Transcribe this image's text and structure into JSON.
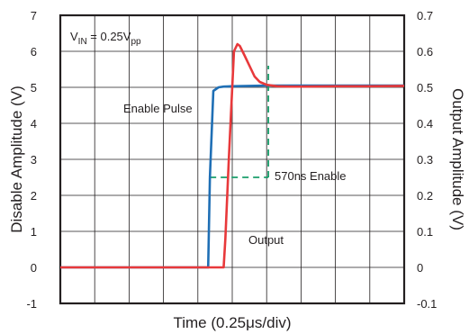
{
  "chart_data": {
    "type": "line",
    "xlabel": "Time (0.25μs/div)",
    "ylabel_left": "Disable Amplitude (V)",
    "ylabel_right": "Output Amplitude (V)",
    "x_unit": "div",
    "x_range": [
      0,
      10
    ],
    "ylim_left": [
      -1,
      7
    ],
    "ylim_right": [
      -0.1,
      0.7
    ],
    "yticks_left": [
      "-1",
      "0",
      "1",
      "2",
      "3",
      "4",
      "5",
      "6",
      "7"
    ],
    "yticks_right": [
      "-0.1",
      "0",
      "0.1",
      "0.2",
      "0.3",
      "0.4",
      "0.5",
      "0.6",
      "0.7"
    ],
    "grid": true,
    "series": [
      {
        "name": "Enable Pulse",
        "axis": "left",
        "color": "#1f6fb5",
        "x": [
          0,
          4.3,
          4.35,
          4.45,
          4.6,
          4.75,
          5.0,
          5.5,
          6.0,
          6.5,
          7.0,
          8.0,
          9.0,
          10.0
        ],
        "y": [
          0,
          0,
          2.5,
          4.9,
          5.0,
          5.02,
          5.03,
          5.04,
          5.05,
          5.05,
          5.05,
          5.05,
          5.05,
          5.05
        ]
      },
      {
        "name": "Output",
        "axis": "right",
        "color": "#e8393b",
        "x": [
          0,
          4.75,
          4.8,
          4.9,
          5.05,
          5.15,
          5.22,
          5.35,
          5.5,
          5.65,
          5.8,
          6.0,
          6.3,
          6.7,
          7.0,
          8.0,
          9.0,
          10.0
        ],
        "y": [
          0,
          0,
          0.08,
          0.3,
          0.6,
          0.62,
          0.615,
          0.59,
          0.56,
          0.53,
          0.515,
          0.507,
          0.503,
          0.502,
          0.502,
          0.503,
          0.503,
          0.504
        ]
      }
    ],
    "annotations": {
      "vin_main": "V",
      "vin_sub": "IN",
      "vin_mid": " = 0.25V",
      "vin_sub2": "pp",
      "enable_pulse": "Enable Pulse",
      "output": "Output",
      "enable_time": "570ns Enable"
    },
    "markers": {
      "dashed_color": "#1a9e6b",
      "enable_h_y_left": 2.5,
      "enable_h_x": [
        4.35,
        6.05
      ],
      "enable_v_x": 6.05,
      "enable_v_y_left": [
        2.5,
        5.6
      ]
    }
  }
}
